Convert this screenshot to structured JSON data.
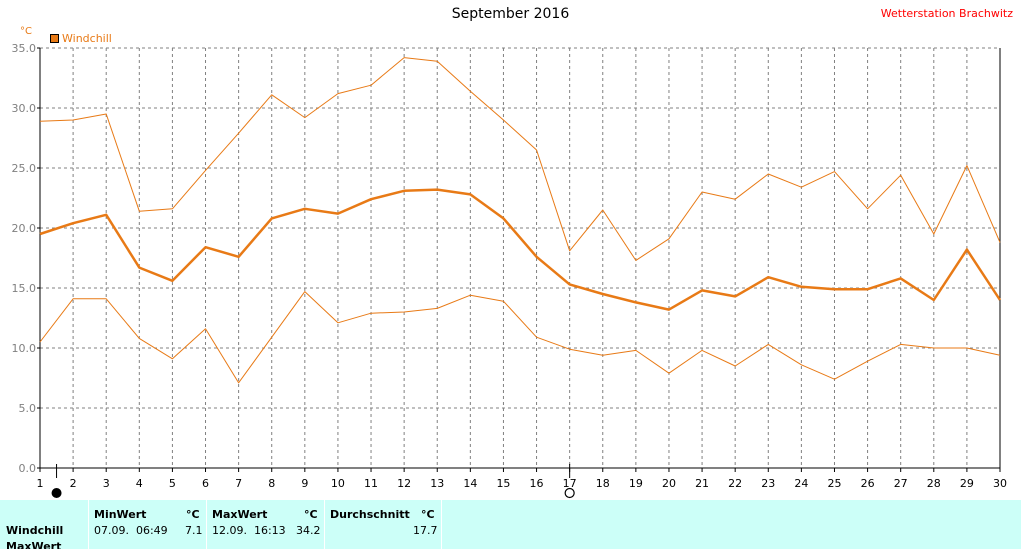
{
  "header": {
    "title": "September 2016",
    "station": "Wetterstation Brachwitz",
    "unit": "°C",
    "legend_label": "Windchill"
  },
  "chart_data": {
    "type": "line",
    "title": "September 2016",
    "ylabel": "°C",
    "xlim": [
      1,
      30
    ],
    "ylim": [
      0,
      35
    ],
    "x_ticks": [
      "1",
      "2",
      "3",
      "4",
      "5",
      "6",
      "7",
      "8",
      "9",
      "10",
      "11",
      "12",
      "13",
      "14",
      "15",
      "16",
      "17",
      "18",
      "19",
      "20",
      "21",
      "22",
      "23",
      "24",
      "25",
      "26",
      "27",
      "28",
      "29",
      "30"
    ],
    "y_ticks": [
      "0.0",
      "5.0",
      "10.0",
      "15.0",
      "20.0",
      "25.0",
      "30.0",
      "35.0"
    ],
    "grid": true,
    "legend_position": "top-left",
    "x": [
      1,
      2,
      3,
      4,
      5,
      6,
      7,
      8,
      9,
      10,
      11,
      12,
      13,
      14,
      15,
      16,
      17,
      18,
      19,
      20,
      21,
      22,
      23,
      24,
      25,
      26,
      27,
      28,
      29,
      30
    ],
    "series": [
      {
        "name": "Windchill",
        "role": "max",
        "values": [
          28.9,
          29.0,
          29.5,
          21.4,
          21.6,
          24.8,
          27.9,
          31.1,
          29.2,
          31.2,
          31.9,
          34.2,
          33.9,
          31.4,
          29.0,
          26.5,
          18.1,
          21.5,
          17.3,
          19.1,
          23.0,
          22.4,
          24.5,
          23.4,
          24.7,
          21.6,
          24.4,
          19.5,
          25.2,
          18.8
        ]
      },
      {
        "name": "Windchill",
        "role": "average",
        "values": [
          19.5,
          20.4,
          21.1,
          16.7,
          15.6,
          18.4,
          17.6,
          20.8,
          21.6,
          21.2,
          22.4,
          23.1,
          23.2,
          22.8,
          20.8,
          17.6,
          15.3,
          14.5,
          13.8,
          13.2,
          14.8,
          14.3,
          15.9,
          15.1,
          14.9,
          14.9,
          15.8,
          14.0,
          18.2,
          14.0
        ]
      },
      {
        "name": "Windchill",
        "role": "min",
        "values": [
          10.5,
          14.1,
          14.1,
          10.8,
          9.1,
          11.6,
          7.1,
          10.9,
          14.7,
          12.1,
          12.9,
          13.0,
          13.3,
          14.4,
          13.9,
          10.9,
          9.9,
          9.4,
          9.8,
          7.9,
          9.8,
          8.5,
          10.3,
          8.6,
          7.4,
          8.9,
          10.3,
          10.0,
          10.0,
          9.4
        ]
      }
    ],
    "markers": [
      {
        "x": 1.5,
        "symbol": "filled-circle"
      },
      {
        "x": 17,
        "symbol": "open-circle"
      }
    ],
    "colors": {
      "line": "#e87a16",
      "axis": "#000000",
      "grid": "#808080"
    }
  },
  "stats": {
    "row_label": "Windchill",
    "row_label_2": "MaxWert",
    "min_header": "MinWert",
    "min_unit": "°C",
    "min_time": "07.09.  06:49",
    "min_value": "7.1",
    "max_header": "MaxWert",
    "max_unit": "°C",
    "max_time": "12.09.  16:13",
    "max_value": "34.2",
    "avg_header": "Durchschnitt",
    "avg_unit": "°C",
    "avg_value": "17.7"
  }
}
